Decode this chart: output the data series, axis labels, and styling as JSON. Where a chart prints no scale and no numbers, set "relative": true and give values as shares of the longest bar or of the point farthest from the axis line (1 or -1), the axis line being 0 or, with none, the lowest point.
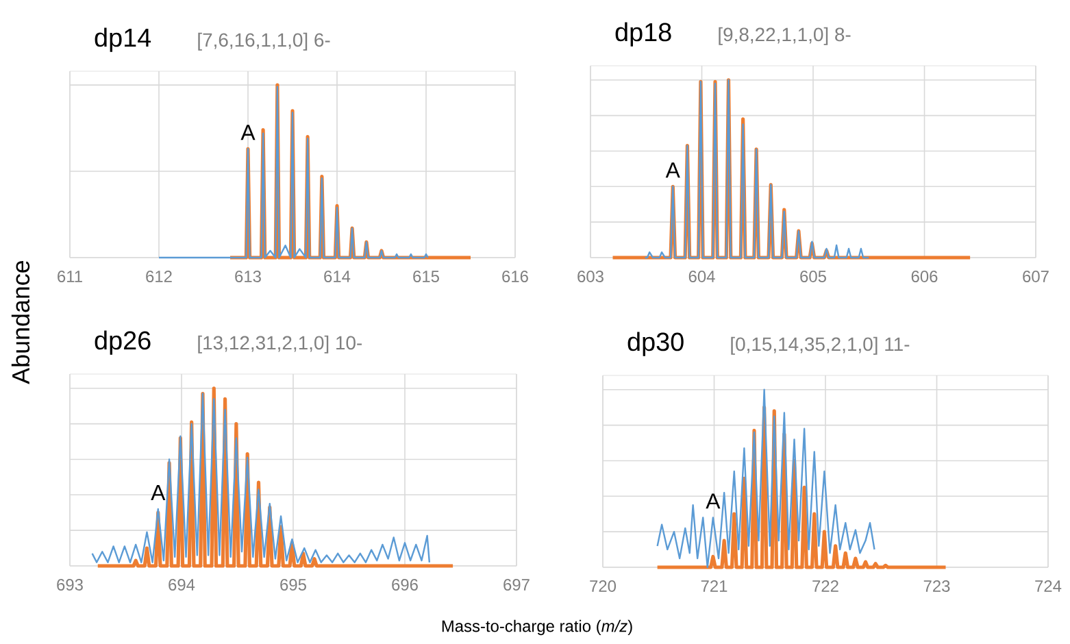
{
  "chart_data": [
    {
      "type": "line",
      "title": "dp14",
      "subtitle": "[7,6,16,1,1,0] 6-",
      "ylabel": "Abundance",
      "relative": true,
      "xlim": [
        611,
        616
      ],
      "xticks": [
        611,
        612,
        613,
        614,
        615,
        616
      ],
      "grid": true,
      "series": [
        {
          "color": "#ed7d31",
          "x": [
            612.8,
            612.98,
            613.0,
            613.02,
            613.15,
            613.17,
            613.19,
            613.31,
            613.33,
            613.35,
            613.48,
            613.5,
            613.52,
            613.65,
            613.67,
            613.69,
            613.81,
            613.83,
            613.85,
            613.98,
            614.0,
            614.02,
            614.15,
            614.17,
            614.19,
            614.31,
            614.33,
            614.35,
            614.48,
            614.5,
            614.52,
            615.5
          ],
          "values": [
            0,
            0,
            0.63,
            0,
            0,
            0.74,
            0,
            0,
            1,
            0,
            0,
            0.85,
            0,
            0,
            0.7,
            0,
            0,
            0.47,
            0,
            0,
            0.3,
            0,
            0,
            0.17,
            0,
            0,
            0.09,
            0,
            0,
            0.04,
            0,
            0
          ]
        },
        {
          "color": "#5b9bd5",
          "x": [
            612.0,
            612.98,
            613.0,
            613.02,
            613.15,
            613.17,
            613.19,
            613.25,
            613.31,
            613.33,
            613.35,
            613.42,
            613.48,
            613.5,
            613.52,
            613.58,
            613.65,
            613.67,
            613.69,
            613.81,
            613.83,
            613.85,
            613.98,
            614.0,
            614.02,
            614.15,
            614.17,
            614.19,
            614.31,
            614.33,
            614.35,
            614.48,
            614.5,
            614.52,
            614.65,
            614.67,
            614.69,
            614.81,
            614.83,
            614.85,
            614.98,
            615.0,
            615.02
          ],
          "values": [
            0,
            0,
            0.63,
            0,
            0,
            0.72,
            0,
            0.04,
            0,
            0.99,
            0,
            0.07,
            0,
            0.84,
            0,
            0.05,
            0,
            0.69,
            0,
            0,
            0.46,
            0,
            0,
            0.29,
            0,
            0,
            0.17,
            0,
            0,
            0.09,
            0,
            0,
            0.04,
            0,
            0,
            0.02,
            0,
            0,
            0.02,
            0,
            0,
            0.02,
            0
          ]
        }
      ],
      "annotations": [
        {
          "text": "A",
          "x": 613.0,
          "y": 0.63
        }
      ]
    },
    {
      "type": "line",
      "title": "dp18",
      "subtitle": "[9,8,22,1,1,0] 8-",
      "relative": true,
      "xlim": [
        603,
        607
      ],
      "xticks": [
        603,
        604,
        605,
        606,
        607
      ],
      "grid": true,
      "series": [
        {
          "color": "#ed7d31",
          "x": [
            603.2,
            603.72,
            603.74,
            603.76,
            603.85,
            603.87,
            603.89,
            603.97,
            603.99,
            604.01,
            604.1,
            604.12,
            604.14,
            604.22,
            604.24,
            604.26,
            604.35,
            604.37,
            604.39,
            604.47,
            604.49,
            604.51,
            604.6,
            604.62,
            604.64,
            604.72,
            604.74,
            604.76,
            604.85,
            604.87,
            604.89,
            604.97,
            604.99,
            605.01,
            605.1,
            605.12,
            605.14,
            606.41
          ],
          "values": [
            0,
            0,
            0.4,
            0,
            0,
            0.63,
            0,
            0,
            0.99,
            0,
            0,
            0.99,
            0,
            0,
            1.0,
            0,
            0,
            0.78,
            0,
            0,
            0.61,
            0,
            0,
            0.41,
            0,
            0,
            0.27,
            0,
            0,
            0.15,
            0,
            0,
            0.08,
            0,
            0,
            0.04,
            0,
            0
          ]
        },
        {
          "color": "#5b9bd5",
          "x": [
            603.49,
            603.51,
            603.53,
            603.56,
            603.62,
            603.64,
            603.67,
            603.72,
            603.74,
            603.76,
            603.85,
            603.87,
            603.89,
            603.97,
            603.99,
            604.01,
            604.1,
            604.12,
            604.14,
            604.22,
            604.24,
            604.26,
            604.35,
            604.37,
            604.39,
            604.47,
            604.49,
            604.51,
            604.6,
            604.62,
            604.64,
            604.72,
            604.74,
            604.76,
            604.85,
            604.87,
            604.89,
            604.97,
            604.99,
            605.01,
            605.1,
            605.12,
            605.14,
            605.19,
            605.21,
            605.23,
            605.3,
            605.32,
            605.34,
            605.41,
            605.43,
            605.45,
            605.5
          ],
          "values": [
            0,
            0,
            0.03,
            0,
            0,
            0.03,
            0,
            0,
            0.4,
            0,
            0,
            0.63,
            0,
            0,
            0.99,
            0,
            0,
            0.98,
            0,
            0,
            1.0,
            0,
            0,
            0.75,
            0,
            0,
            0.61,
            0,
            0,
            0.41,
            0,
            0,
            0.26,
            0,
            0,
            0.15,
            0,
            0,
            0.09,
            0,
            0,
            0.05,
            0,
            0,
            0.07,
            0,
            0,
            0.05,
            0,
            0,
            0.05,
            0,
            0
          ]
        }
      ],
      "annotations": [
        {
          "text": "A",
          "x": 603.74,
          "y": 0.4
        }
      ]
    },
    {
      "type": "line",
      "title": "dp26",
      "subtitle": "[13,12,31,2,1,0] 10-",
      "xlabel": "Mass-to-charge ratio (*m/z*)",
      "relative": true,
      "xlim": [
        693,
        697
      ],
      "xticks": [
        693,
        694,
        695,
        696,
        697
      ],
      "grid": true,
      "series": [
        {
          "color": "#ed7d31",
          "x": [
            693.25,
            693.57,
            693.59,
            693.61,
            693.67,
            693.69,
            693.71,
            693.77,
            693.79,
            693.81,
            693.87,
            693.89,
            693.91,
            693.97,
            693.99,
            694.01,
            694.07,
            694.09,
            694.11,
            694.17,
            694.19,
            694.21,
            694.27,
            694.29,
            694.31,
            694.37,
            694.39,
            694.41,
            694.47,
            694.49,
            694.51,
            694.57,
            694.59,
            694.61,
            694.67,
            694.69,
            694.71,
            694.77,
            694.79,
            694.81,
            694.87,
            694.89,
            694.91,
            694.97,
            694.99,
            695.01,
            695.07,
            695.09,
            695.11,
            695.17,
            695.19,
            695.21,
            696.43
          ],
          "values": [
            0,
            0,
            0.03,
            0,
            0,
            0.1,
            0,
            0,
            0.3,
            0,
            0,
            0.58,
            0,
            0,
            0.72,
            0,
            0,
            0.81,
            0,
            0,
            0.97,
            0,
            0,
            1.0,
            0,
            0,
            0.94,
            0,
            0,
            0.8,
            0,
            0,
            0.63,
            0,
            0,
            0.47,
            0,
            0,
            0.33,
            0,
            0,
            0.22,
            0,
            0,
            0.13,
            0,
            0,
            0.07,
            0,
            0,
            0.04,
            0,
            0
          ]
        },
        {
          "color": "#5b9bd5",
          "x": [
            693.2,
            693.24,
            693.29,
            693.34,
            693.39,
            693.44,
            693.49,
            693.54,
            693.59,
            693.64,
            693.69,
            693.74,
            693.79,
            693.84,
            693.89,
            693.94,
            693.99,
            694.04,
            694.09,
            694.14,
            694.19,
            694.24,
            694.29,
            694.34,
            694.39,
            694.44,
            694.49,
            694.54,
            694.59,
            694.64,
            694.69,
            694.74,
            694.79,
            694.84,
            694.89,
            694.94,
            694.99,
            695.04,
            695.1,
            695.15,
            695.2,
            695.25,
            695.3,
            695.35,
            695.4,
            695.45,
            695.5,
            695.55,
            695.6,
            695.65,
            695.7,
            695.75,
            695.8,
            695.85,
            695.9,
            695.95,
            696.0,
            696.05,
            696.1,
            696.15,
            696.2,
            696.22
          ],
          "values": [
            0.07,
            0.02,
            0.08,
            0.02,
            0.11,
            0.02,
            0.11,
            0.02,
            0.12,
            0.02,
            0.19,
            0.02,
            0.32,
            0.03,
            0.6,
            0.05,
            0.73,
            0.05,
            0.8,
            0.06,
            0.97,
            0.06,
            0.94,
            0.06,
            0.88,
            0.05,
            0.72,
            0.08,
            0.61,
            0.05,
            0.43,
            0.05,
            0.35,
            0.04,
            0.28,
            0.03,
            0.15,
            0.02,
            0.1,
            0.02,
            0.09,
            0.02,
            0.06,
            0.02,
            0.07,
            0.02,
            0.06,
            0.02,
            0.07,
            0.02,
            0.09,
            0.03,
            0.12,
            0.04,
            0.16,
            0.03,
            0.13,
            0.03,
            0.12,
            0.03,
            0.17,
            0.02
          ]
        }
      ],
      "annotations": [
        {
          "text": "A",
          "x": 693.79,
          "y": 0.32
        }
      ]
    },
    {
      "type": "line",
      "title": "dp30",
      "subtitle": "[0,15,14,35,2,1,0] 11-",
      "relative": true,
      "xlim": [
        720,
        724
      ],
      "xticks": [
        720,
        721,
        722,
        723,
        724
      ],
      "grid": true,
      "series": [
        {
          "color": "#ed7d31",
          "x": [
            720.49,
            720.97,
            720.99,
            721.01,
            721.07,
            721.09,
            721.11,
            721.16,
            721.18,
            721.2,
            721.25,
            721.27,
            721.29,
            721.34,
            721.36,
            721.38,
            721.43,
            721.45,
            721.47,
            721.52,
            721.54,
            721.56,
            721.61,
            721.63,
            721.65,
            721.7,
            721.72,
            721.74,
            721.79,
            721.81,
            721.83,
            721.88,
            721.9,
            721.92,
            721.97,
            721.99,
            722.01,
            722.07,
            722.09,
            722.11,
            722.16,
            722.18,
            722.2,
            722.25,
            722.27,
            722.29,
            722.34,
            722.36,
            722.38,
            722.43,
            722.45,
            722.47,
            722.52,
            722.54,
            722.56,
            723.08
          ],
          "values": [
            0,
            0,
            0.06,
            0,
            0,
            0.15,
            0,
            0,
            0.3,
            0,
            0,
            0.5,
            0,
            0,
            0.77,
            0,
            0,
            0.9,
            0,
            0,
            0.88,
            0,
            0,
            0.75,
            0,
            0,
            0.6,
            0,
            0,
            0.45,
            0,
            0,
            0.3,
            0,
            0,
            0.2,
            0,
            0,
            0.12,
            0,
            0,
            0.08,
            0,
            0,
            0.05,
            0,
            0,
            0.03,
            0,
            0,
            0.02,
            0,
            0,
            0.01,
            0,
            0
          ]
        },
        {
          "color": "#5b9bd5",
          "x": [
            720.49,
            720.53,
            720.58,
            720.64,
            720.69,
            720.74,
            720.78,
            720.81,
            720.85,
            720.9,
            720.94,
            720.99,
            721.04,
            721.09,
            721.13,
            721.18,
            721.22,
            721.27,
            721.31,
            721.36,
            721.4,
            721.45,
            721.5,
            721.54,
            721.58,
            721.63,
            721.67,
            721.72,
            721.76,
            721.81,
            721.85,
            721.9,
            721.94,
            721.99,
            722.04,
            722.09,
            722.13,
            722.18,
            722.22,
            722.27,
            722.31,
            722.36,
            722.4,
            722.44
          ],
          "values": [
            0.12,
            0.24,
            0.1,
            0.2,
            0.05,
            0.22,
            0.08,
            0.35,
            0.05,
            0.28,
            0.0,
            0.28,
            0.05,
            0.42,
            0.08,
            0.54,
            0.1,
            0.67,
            0.12,
            0.76,
            0.15,
            1.0,
            0.12,
            0.85,
            0.15,
            0.87,
            0.1,
            0.72,
            0.15,
            0.78,
            0.1,
            0.65,
            0.12,
            0.54,
            0.08,
            0.35,
            0.1,
            0.25,
            0.1,
            0.21,
            0.08,
            0.15,
            0.25,
            0.1
          ]
        }
      ],
      "annotations": [
        {
          "text": "A",
          "x": 720.99,
          "y": 0.28
        }
      ]
    }
  ]
}
